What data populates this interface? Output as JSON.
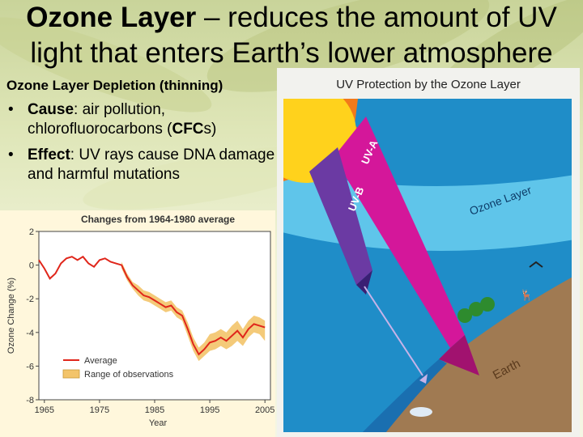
{
  "slide": {
    "title_bold": "Ozone Layer",
    "title_rest": " – reduces the amount of UV light that enters Earth’s lower atmosphere",
    "subheading": "Ozone Layer Depletion (thinning)",
    "bullets": [
      {
        "term": "Cause",
        "text_a": ": air pollution, chlorofluorocarbons (",
        "em": "CFC",
        "text_b": "s)"
      },
      {
        "term": "Effect",
        "text_a": ": UV rays cause DNA damage and harmful mutations",
        "em": "",
        "text_b": ""
      }
    ]
  },
  "diagram": {
    "title": "UV Protection by the Ozone Layer",
    "labels": {
      "uvb": "UV-B",
      "uva": "UV-A",
      "ozone": "Ozone Layer",
      "earth": "Earth"
    },
    "colors": {
      "sky": "#1f8dc8",
      "ozone": "#5fc5ea",
      "sun": "#ffd21c",
      "uva": "#d4179a",
      "uvb": "#6b3aa3",
      "earth": "#a07a52"
    }
  },
  "chart_data": {
    "type": "line",
    "title": "Changes from 1964-1980 average",
    "xlabel": "Year",
    "ylabel": "Ozone Change (%)",
    "xlim": [
      1964,
      2006
    ],
    "ylim": [
      -8,
      2
    ],
    "xticks": [
      1965,
      1975,
      1985,
      1995,
      2005
    ],
    "yticks": [
      2,
      0,
      -2,
      -4,
      -6,
      -8
    ],
    "legend": {
      "placement": "bottom-left",
      "items": [
        "Average",
        "Range of observations"
      ]
    },
    "series": [
      {
        "name": "Average",
        "color": "#e0261b",
        "x": [
          1964,
          1965,
          1966,
          1967,
          1968,
          1969,
          1970,
          1971,
          1972,
          1973,
          1974,
          1975,
          1976,
          1977,
          1978,
          1979,
          1980,
          1981,
          1982,
          1983,
          1984,
          1985,
          1986,
          1987,
          1988,
          1989,
          1990,
          1991,
          1992,
          1993,
          1994,
          1995,
          1996,
          1997,
          1998,
          1999,
          2000,
          2001,
          2002,
          2003,
          2004,
          2005
        ],
        "y": [
          0.3,
          -0.2,
          -0.8,
          -0.5,
          0.1,
          0.4,
          0.5,
          0.3,
          0.5,
          0.1,
          -0.1,
          0.3,
          0.4,
          0.2,
          0.1,
          0.0,
          -0.7,
          -1.2,
          -1.5,
          -1.8,
          -1.9,
          -2.1,
          -2.3,
          -2.5,
          -2.4,
          -2.8,
          -3.0,
          -3.8,
          -4.7,
          -5.3,
          -5.0,
          -4.6,
          -4.5,
          -4.3,
          -4.5,
          -4.2,
          -3.9,
          -4.3,
          -3.8,
          -3.5,
          -3.6,
          -3.7
        ]
      },
      {
        "name": "Range of observations",
        "color": "#f3c46a",
        "x": [
          1979,
          1980,
          1981,
          1982,
          1983,
          1984,
          1985,
          1986,
          1987,
          1988,
          1989,
          1990,
          1991,
          1992,
          1993,
          1994,
          1995,
          1996,
          1997,
          1998,
          1999,
          2000,
          2001,
          2002,
          2003,
          2004,
          2005
        ],
        "y_low": [
          -0.2,
          -0.9,
          -1.4,
          -1.8,
          -2.1,
          -2.2,
          -2.4,
          -2.6,
          -2.8,
          -2.7,
          -3.1,
          -3.3,
          -4.2,
          -5.1,
          -5.7,
          -5.4,
          -5.1,
          -5.0,
          -4.8,
          -5.0,
          -4.8,
          -4.5,
          -4.8,
          -4.3,
          -4.0,
          -4.1,
          -4.5
        ],
        "y_high": [
          0.2,
          -0.5,
          -1.0,
          -1.2,
          -1.5,
          -1.6,
          -1.8,
          -2.0,
          -2.2,
          -2.1,
          -2.5,
          -2.7,
          -3.4,
          -4.3,
          -4.9,
          -4.6,
          -4.1,
          -4.0,
          -3.8,
          -4.0,
          -3.6,
          -3.3,
          -3.8,
          -3.3,
          -3.0,
          -3.1,
          -3.3
        ]
      }
    ]
  }
}
